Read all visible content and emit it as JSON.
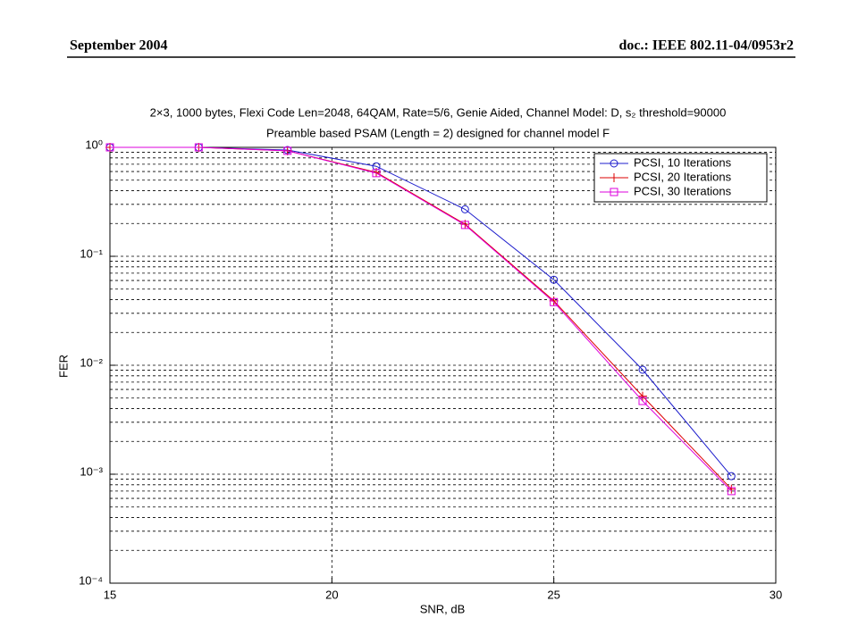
{
  "header": {
    "left": "September 2004",
    "right": "doc.: IEEE 802.11-04/0953r2"
  },
  "chart_data": {
    "type": "line",
    "title": "2×3, 1000 bytes, Flexi Code Len=2048, 64QAM, Rate=5/6, Genie Aided, Channel Model: D, s₂ threshold=90000",
    "subtitle": "Preamble based PSAM (Length = 2) designed for channel model F",
    "x_label": "SNR, dB",
    "y_label": "FER",
    "x": [
      15,
      17,
      19,
      21,
      23,
      25,
      27,
      29
    ],
    "series": [
      {
        "name": "PCSI, 10 Iterations",
        "color": "#1c1ccc",
        "marker": "o",
        "values": [
          1,
          1,
          0.945,
          0.67,
          0.27,
          0.061,
          0.0091,
          0.00096
        ]
      },
      {
        "name": "PCSI, 20 Iterations",
        "color": "#dd0000",
        "marker": "+",
        "values": [
          1,
          1,
          0.93,
          0.59,
          0.197,
          0.039,
          0.0052,
          0.00073
        ]
      },
      {
        "name": "PCSI, 30 Iterations",
        "color": "#dd00dd",
        "marker": "s",
        "values": [
          1,
          1,
          0.93,
          0.58,
          0.194,
          0.038,
          0.0047,
          0.0007
        ]
      }
    ],
    "xlim": [
      15,
      30
    ],
    "xticks": [
      15,
      20,
      25,
      30
    ],
    "ylim": [
      0.0001,
      1
    ],
    "yticks": [
      {
        "value": 1,
        "label": "10⁰"
      },
      {
        "value": 0.1,
        "label": "10⁻¹"
      },
      {
        "value": 0.01,
        "label": "10⁻²"
      },
      {
        "value": 0.001,
        "label": "10⁻³"
      },
      {
        "value": 0.0001,
        "label": "10⁻⁴"
      }
    ],
    "log_y": true,
    "grid": true,
    "minor_grid": true,
    "legend": "upper right"
  }
}
